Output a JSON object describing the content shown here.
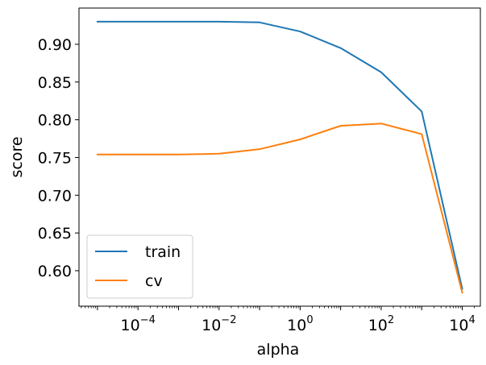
{
  "chart_data": {
    "type": "line",
    "xscale": "log",
    "x": [
      1e-05,
      0.0001,
      0.001,
      0.01,
      0.1,
      1,
      10,
      100,
      1000,
      10000
    ],
    "series": [
      {
        "name": "train",
        "color": "#1f77b4",
        "values": [
          0.93,
          0.93,
          0.93,
          0.93,
          0.929,
          0.917,
          0.895,
          0.863,
          0.811,
          0.576
        ]
      },
      {
        "name": "cv",
        "color": "#ff7f0e",
        "values": [
          0.754,
          0.754,
          0.754,
          0.755,
          0.761,
          0.774,
          0.792,
          0.795,
          0.781,
          0.571
        ]
      }
    ],
    "xlabel": "alpha",
    "ylabel": "score",
    "xlim": [
      3.5e-06,
      28000
    ],
    "ylim": [
      0.553,
      0.948
    ],
    "xticks": [
      {
        "value": 0.0001,
        "base": "10",
        "exp": "−4"
      },
      {
        "value": 0.01,
        "base": "10",
        "exp": "−2"
      },
      {
        "value": 1,
        "base": "10",
        "exp": "0"
      },
      {
        "value": 100,
        "base": "10",
        "exp": "2"
      },
      {
        "value": 10000,
        "base": "10",
        "exp": "4"
      }
    ],
    "yticks": [
      0.6,
      0.65,
      0.7,
      0.75,
      0.8,
      0.85,
      0.9
    ],
    "ytick_labels": [
      "0.60",
      "0.65",
      "0.70",
      "0.75",
      "0.80",
      "0.85",
      "0.90"
    ],
    "grid": false,
    "legend_position": "lower-left"
  }
}
